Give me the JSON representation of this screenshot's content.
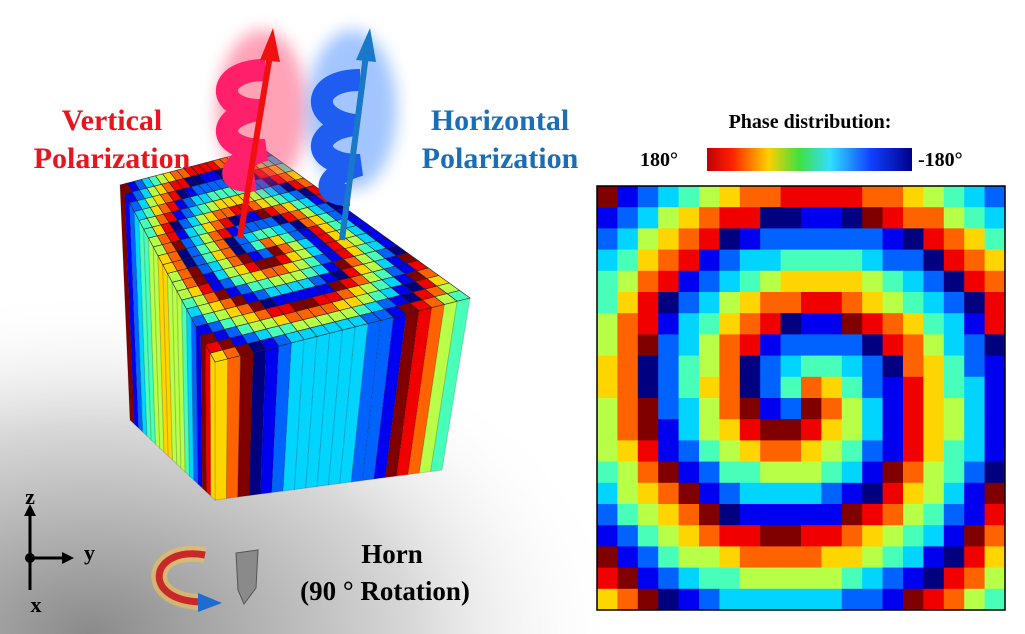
{
  "left_panel": {
    "vertical_label": {
      "line1": "Vertical",
      "line2": "Polarization"
    },
    "horizontal_label": {
      "line1": "Horizontal",
      "line2": "Polarization"
    },
    "axes": {
      "z": "z",
      "y": "y",
      "x": "x"
    },
    "horn": {
      "line1": "Horn",
      "line2": "(90 ° Rotation)"
    }
  },
  "right_panel": {
    "title": "Phase distribution:",
    "colorbar": {
      "max_label": "180°",
      "min_label": "-180°"
    }
  }
}
